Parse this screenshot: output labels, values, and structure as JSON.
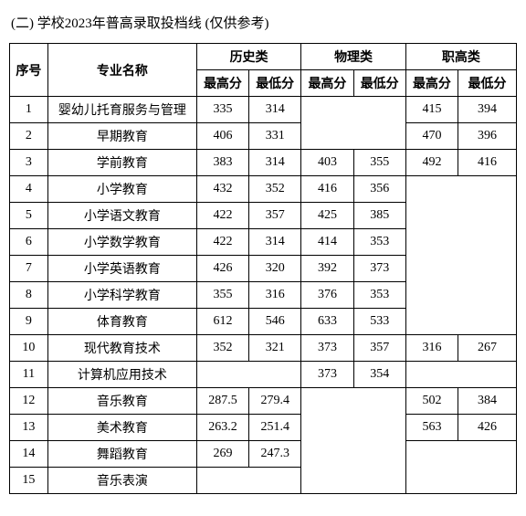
{
  "title": "(二) 学校2023年普高录取投档线 (仅供参考)",
  "headers": {
    "idx": "序号",
    "major": "专业名称",
    "group_history": "历史类",
    "group_physics": "物理类",
    "group_vocational": "职高类",
    "high": "最高分",
    "low": "最低分"
  },
  "rows": [
    {
      "idx": "1",
      "major": "婴幼儿托育服务与管理",
      "h_hi": "335",
      "h_lo": "314",
      "p_hi": "",
      "p_lo": "",
      "v_hi": "415",
      "v_lo": "394"
    },
    {
      "idx": "2",
      "major": "早期教育",
      "h_hi": "406",
      "h_lo": "331",
      "p_hi": "",
      "p_lo": "",
      "v_hi": "470",
      "v_lo": "396"
    },
    {
      "idx": "3",
      "major": "学前教育",
      "h_hi": "383",
      "h_lo": "314",
      "p_hi": "403",
      "p_lo": "355",
      "v_hi": "492",
      "v_lo": "416"
    },
    {
      "idx": "4",
      "major": "小学教育",
      "h_hi": "432",
      "h_lo": "352",
      "p_hi": "416",
      "p_lo": "356",
      "v_hi": "",
      "v_lo": ""
    },
    {
      "idx": "5",
      "major": "小学语文教育",
      "h_hi": "422",
      "h_lo": "357",
      "p_hi": "425",
      "p_lo": "385",
      "v_hi": "",
      "v_lo": ""
    },
    {
      "idx": "6",
      "major": "小学数学教育",
      "h_hi": "422",
      "h_lo": "314",
      "p_hi": "414",
      "p_lo": "353",
      "v_hi": "",
      "v_lo": ""
    },
    {
      "idx": "7",
      "major": "小学英语教育",
      "h_hi": "426",
      "h_lo": "320",
      "p_hi": "392",
      "p_lo": "373",
      "v_hi": "",
      "v_lo": ""
    },
    {
      "idx": "8",
      "major": "小学科学教育",
      "h_hi": "355",
      "h_lo": "316",
      "p_hi": "376",
      "p_lo": "353",
      "v_hi": "",
      "v_lo": ""
    },
    {
      "idx": "9",
      "major": "体育教育",
      "h_hi": "612",
      "h_lo": "546",
      "p_hi": "633",
      "p_lo": "533",
      "v_hi": "",
      "v_lo": ""
    },
    {
      "idx": "10",
      "major": "现代教育技术",
      "h_hi": "352",
      "h_lo": "321",
      "p_hi": "373",
      "p_lo": "357",
      "v_hi": "316",
      "v_lo": "267"
    },
    {
      "idx": "11",
      "major": "计算机应用技术",
      "h_hi": "",
      "h_lo": "",
      "p_hi": "373",
      "p_lo": "354",
      "v_hi": "",
      "v_lo": ""
    },
    {
      "idx": "12",
      "major": "音乐教育",
      "h_hi": "287.5",
      "h_lo": "279.4",
      "p_hi": "",
      "p_lo": "",
      "v_hi": "502",
      "v_lo": "384"
    },
    {
      "idx": "13",
      "major": "美术教育",
      "h_hi": "263.2",
      "h_lo": "251.4",
      "p_hi": "",
      "p_lo": "",
      "v_hi": "563",
      "v_lo": "426"
    },
    {
      "idx": "14",
      "major": "舞蹈教育",
      "h_hi": "269",
      "h_lo": "247.3",
      "p_hi": "",
      "p_lo": "",
      "v_hi": "",
      "v_lo": ""
    },
    {
      "idx": "15",
      "major": "音乐表演",
      "h_hi": "",
      "h_lo": "",
      "p_hi": "",
      "p_lo": "",
      "v_hi": "",
      "v_lo": ""
    }
  ]
}
